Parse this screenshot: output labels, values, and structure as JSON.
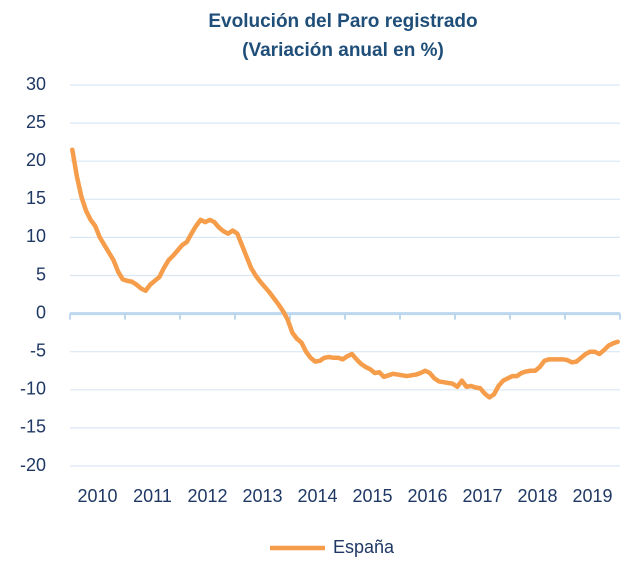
{
  "chart_data": {
    "type": "line",
    "title": "Evolución del Paro registrado",
    "subtitle": "(Variación anual en %)",
    "categories": [
      null,
      null,
      null,
      null,
      null,
      null,
      "2010",
      null,
      null,
      null,
      null,
      null,
      null,
      null,
      null,
      null,
      null,
      null,
      "2011",
      null,
      null,
      null,
      null,
      null,
      null,
      null,
      null,
      null,
      null,
      null,
      "2012",
      null,
      null,
      null,
      null,
      null,
      null,
      null,
      null,
      null,
      null,
      null,
      "2013",
      null,
      null,
      null,
      null,
      null,
      null,
      null,
      null,
      null,
      null,
      null,
      "2014",
      null,
      null,
      null,
      null,
      null,
      null,
      null,
      null,
      null,
      null,
      null,
      "2015",
      null,
      null,
      null,
      null,
      null,
      null,
      null,
      null,
      null,
      null,
      null,
      "2016",
      null,
      null,
      null,
      null,
      null,
      null,
      null,
      null,
      null,
      null,
      null,
      "2017",
      null,
      null,
      null,
      null,
      null,
      null,
      null,
      null,
      null,
      null,
      null,
      "2018",
      null,
      null,
      null,
      null,
      null,
      null,
      null,
      null,
      null,
      null,
      null,
      "2019",
      null,
      null,
      null,
      null,
      null
    ],
    "series": [
      {
        "name": "España",
        "color": "#f59d4a",
        "values": [
          21.5,
          18,
          15.3,
          13.5,
          12.3,
          11.5,
          10,
          9,
          8,
          7,
          5.5,
          4.5,
          4.3,
          4.2,
          3.8,
          3.3,
          3,
          3.8,
          4.3,
          4.8,
          6,
          7,
          7.6,
          8.3,
          9,
          9.4,
          10.5,
          11.5,
          12.3,
          12,
          12.3,
          12,
          11.3,
          10.8,
          10.5,
          10.9,
          10.5,
          9,
          7.5,
          6,
          5,
          4.2,
          3.5,
          2.8,
          2,
          1.2,
          0.3,
          -0.8,
          -2.5,
          -3.3,
          -3.8,
          -5,
          -5.8,
          -6.3,
          -6.2,
          -5.8,
          -5.7,
          -5.8,
          -5.8,
          -6,
          -5.6,
          -5.3,
          -6,
          -6.6,
          -7,
          -7.3,
          -7.8,
          -7.7,
          -8.3,
          -8.1,
          -7.9,
          -8,
          -8.1,
          -8.2,
          -8.1,
          -8,
          -7.8,
          -7.5,
          -7.8,
          -8.5,
          -8.9,
          -9,
          -9.1,
          -9.2,
          -9.6,
          -8.8,
          -9.6,
          -9.5,
          -9.7,
          -9.8,
          -10.5,
          -11,
          -10.6,
          -9.5,
          -8.8,
          -8.5,
          -8.2,
          -8.2,
          -7.8,
          -7.6,
          -7.5,
          -7.5,
          -7,
          -6.2,
          -6,
          -6,
          -6,
          -6,
          -6.1,
          -6.4,
          -6.3,
          -5.8,
          -5.3,
          -5,
          -5,
          -5.3,
          -4.8,
          -4.2,
          -3.9,
          -3.7
        ]
      }
    ],
    "ylim": [
      -20,
      30
    ],
    "yticks": [
      -20,
      -15,
      -10,
      -5,
      0,
      5,
      10,
      15,
      20,
      25,
      30
    ],
    "grid": true,
    "legend": "bottom"
  }
}
